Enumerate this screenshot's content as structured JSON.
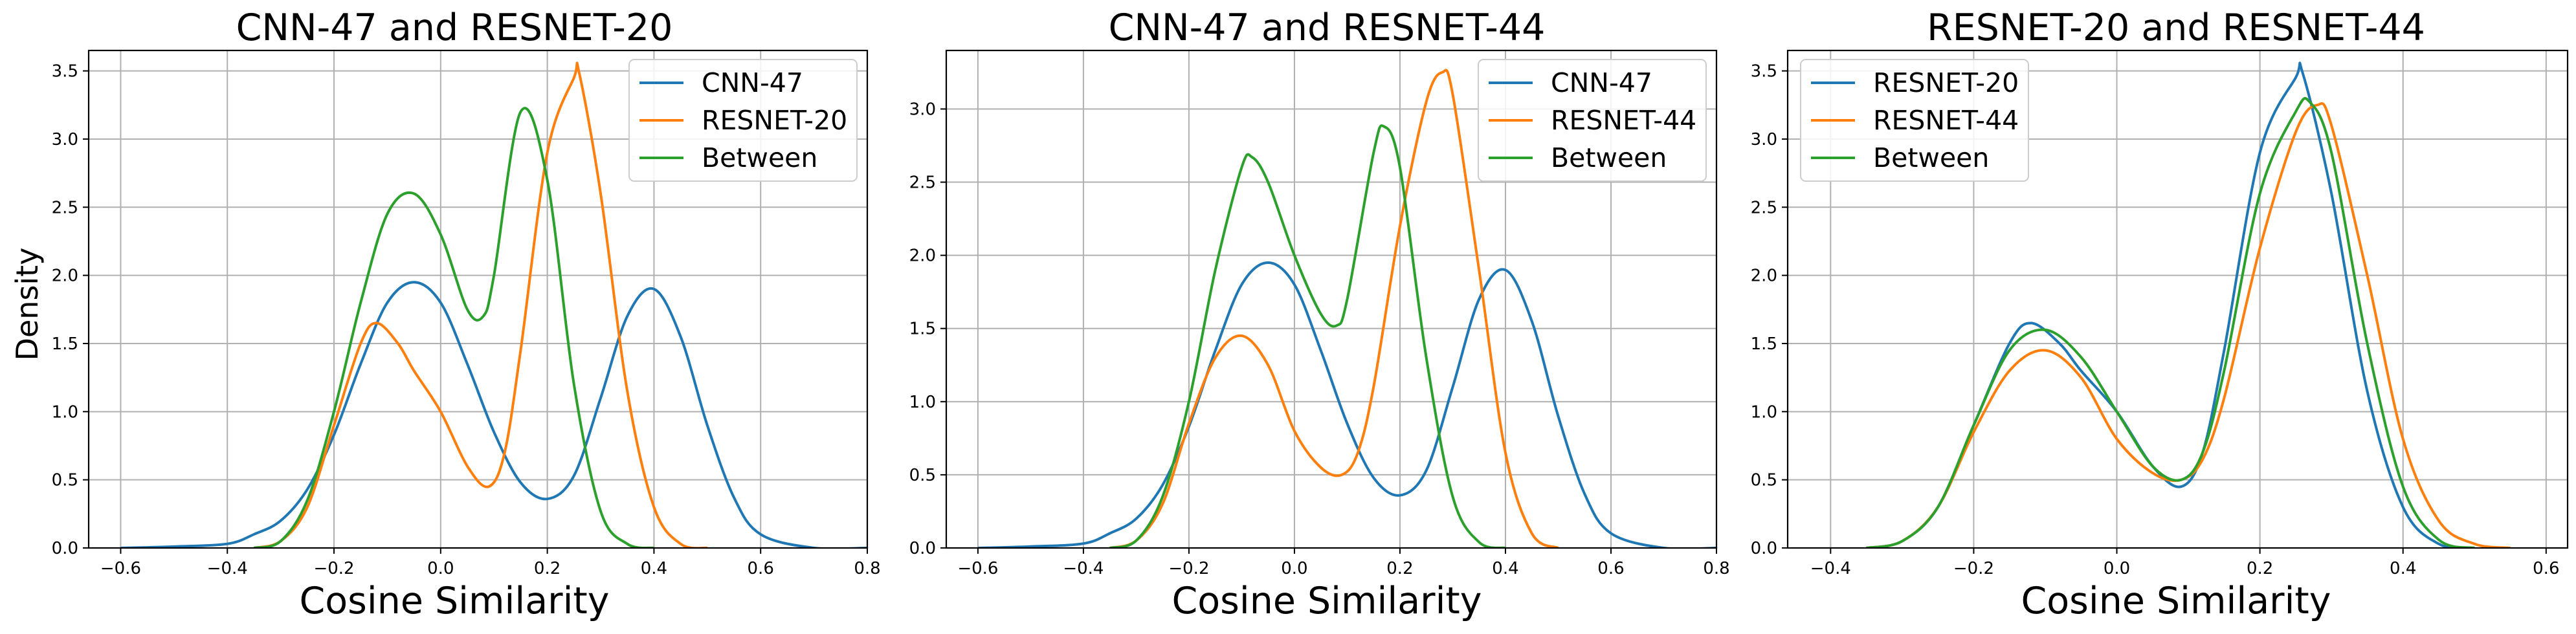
{
  "colors": {
    "blue": "#1f77b4",
    "orange": "#ff7f0e",
    "green": "#2ca02c",
    "grid": "#b0b0b0"
  },
  "chart_data": [
    {
      "type": "line",
      "title": "CNN-47 and RESNET-20",
      "xlabel": "Cosine Similarity",
      "ylabel": "Density",
      "xlim": [
        -0.66,
        0.8
      ],
      "ylim": [
        0,
        3.65
      ],
      "xticks": [
        -0.6,
        -0.4,
        -0.2,
        0.0,
        0.2,
        0.4,
        0.6,
        0.8
      ],
      "xtick_labels": [
        "−0.6",
        "−0.4",
        "−0.2",
        "0.0",
        "0.2",
        "0.4",
        "0.6",
        "0.8"
      ],
      "yticks": [
        0,
        0.5,
        1.0,
        1.5,
        2.0,
        2.5,
        3.0,
        3.5
      ],
      "ytick_labels": [
        "0.0",
        "0.5",
        "1.0",
        "1.5",
        "2.0",
        "2.5",
        "3.0",
        "3.5"
      ],
      "grid": true,
      "legend": "top-right",
      "series": [
        {
          "name": "CNN-47",
          "color": "#1f77b4",
          "x": [
            -0.6,
            -0.5,
            -0.4,
            -0.35,
            -0.3,
            -0.25,
            -0.2,
            -0.15,
            -0.1,
            -0.05,
            0.0,
            0.05,
            0.1,
            0.15,
            0.2,
            0.25,
            0.3,
            0.35,
            0.4,
            0.45,
            0.5,
            0.55,
            0.6,
            0.7,
            0.8
          ],
          "y": [
            0.0,
            0.01,
            0.03,
            0.1,
            0.2,
            0.43,
            0.83,
            1.35,
            1.8,
            1.95,
            1.8,
            1.35,
            0.85,
            0.48,
            0.36,
            0.53,
            1.1,
            1.7,
            1.9,
            1.55,
            0.9,
            0.37,
            0.1,
            0.0,
            0.0
          ]
        },
        {
          "name": "RESNET-20",
          "color": "#ff7f0e",
          "x": [
            -0.35,
            -0.3,
            -0.25,
            -0.2,
            -0.15,
            -0.12,
            -0.08,
            -0.05,
            0.0,
            0.05,
            0.09,
            0.12,
            0.15,
            0.2,
            0.25,
            0.26,
            0.3,
            0.35,
            0.4,
            0.45,
            0.5
          ],
          "y": [
            0.0,
            0.05,
            0.3,
            0.9,
            1.5,
            1.65,
            1.5,
            1.3,
            1.0,
            0.6,
            0.45,
            0.7,
            1.45,
            2.9,
            3.45,
            3.48,
            2.6,
            1.15,
            0.3,
            0.03,
            0.0
          ]
        },
        {
          "name": "Between",
          "color": "#2ca02c",
          "x": [
            -0.35,
            -0.3,
            -0.25,
            -0.2,
            -0.15,
            -0.1,
            -0.05,
            0.0,
            0.05,
            0.08,
            0.1,
            0.15,
            0.2,
            0.25,
            0.3,
            0.35,
            0.4
          ],
          "y": [
            0.0,
            0.05,
            0.35,
            1.0,
            1.8,
            2.45,
            2.6,
            2.3,
            1.75,
            1.7,
            2.0,
            3.2,
            2.7,
            1.2,
            0.27,
            0.03,
            0.0
          ]
        }
      ]
    },
    {
      "type": "line",
      "title": "CNN-47 and RESNET-44",
      "xlabel": "Cosine Similarity",
      "ylabel": "",
      "xlim": [
        -0.66,
        0.8
      ],
      "ylim": [
        0,
        3.4
      ],
      "xticks": [
        -0.6,
        -0.4,
        -0.2,
        0.0,
        0.2,
        0.4,
        0.6,
        0.8
      ],
      "xtick_labels": [
        "−0.6",
        "−0.4",
        "−0.2",
        "0.0",
        "0.2",
        "0.4",
        "0.6",
        "0.8"
      ],
      "yticks": [
        0,
        0.5,
        1.0,
        1.5,
        2.0,
        2.5,
        3.0
      ],
      "ytick_labels": [
        "0.0",
        "0.5",
        "1.0",
        "1.5",
        "2.0",
        "2.5",
        "3.0"
      ],
      "grid": true,
      "legend": "top-right",
      "series": [
        {
          "name": "CNN-47",
          "color": "#1f77b4",
          "x": [
            -0.6,
            -0.5,
            -0.4,
            -0.35,
            -0.3,
            -0.25,
            -0.2,
            -0.15,
            -0.1,
            -0.05,
            0.0,
            0.05,
            0.1,
            0.15,
            0.2,
            0.25,
            0.3,
            0.35,
            0.4,
            0.45,
            0.5,
            0.55,
            0.6,
            0.7,
            0.8
          ],
          "y": [
            0.0,
            0.01,
            0.03,
            0.1,
            0.2,
            0.43,
            0.83,
            1.35,
            1.8,
            1.95,
            1.8,
            1.35,
            0.85,
            0.48,
            0.36,
            0.53,
            1.1,
            1.7,
            1.9,
            1.55,
            0.9,
            0.37,
            0.1,
            0.0,
            0.0
          ]
        },
        {
          "name": "RESNET-44",
          "color": "#ff7f0e",
          "x": [
            -0.35,
            -0.3,
            -0.25,
            -0.2,
            -0.15,
            -0.1,
            -0.05,
            0.0,
            0.05,
            0.09,
            0.12,
            0.15,
            0.2,
            0.25,
            0.28,
            0.3,
            0.35,
            0.4,
            0.45,
            0.5
          ],
          "y": [
            0.0,
            0.05,
            0.3,
            0.85,
            1.3,
            1.45,
            1.25,
            0.8,
            0.55,
            0.5,
            0.65,
            1.1,
            2.2,
            3.05,
            3.25,
            3.1,
            1.9,
            0.65,
            0.1,
            0.0
          ]
        },
        {
          "name": "Between",
          "color": "#2ca02c",
          "x": [
            -0.35,
            -0.3,
            -0.25,
            -0.2,
            -0.15,
            -0.1,
            -0.08,
            -0.05,
            0.0,
            0.05,
            0.08,
            0.1,
            0.15,
            0.17,
            0.2,
            0.25,
            0.3,
            0.35,
            0.4
          ],
          "y": [
            0.0,
            0.05,
            0.35,
            1.0,
            1.9,
            2.6,
            2.67,
            2.5,
            2.0,
            1.6,
            1.52,
            1.7,
            2.7,
            2.88,
            2.6,
            1.3,
            0.35,
            0.04,
            0.0
          ]
        }
      ]
    },
    {
      "type": "line",
      "title": "RESNET-20 and RESNET-44",
      "xlabel": "Cosine Similarity",
      "ylabel": "",
      "xlim": [
        -0.46,
        0.63
      ],
      "ylim": [
        0,
        3.65
      ],
      "xticks": [
        -0.4,
        -0.2,
        0.0,
        0.2,
        0.4,
        0.6
      ],
      "xtick_labels": [
        "−0.4",
        "−0.2",
        "0.0",
        "0.2",
        "0.4",
        "0.6"
      ],
      "yticks": [
        0,
        0.5,
        1.0,
        1.5,
        2.0,
        2.5,
        3.0,
        3.5
      ],
      "ytick_labels": [
        "0.0",
        "0.5",
        "1.0",
        "1.5",
        "2.0",
        "2.5",
        "3.0",
        "3.5"
      ],
      "grid": true,
      "legend": "top-left",
      "series": [
        {
          "name": "RESNET-20",
          "color": "#1f77b4",
          "x": [
            -0.35,
            -0.3,
            -0.25,
            -0.2,
            -0.15,
            -0.12,
            -0.08,
            -0.05,
            0.0,
            0.05,
            0.09,
            0.12,
            0.15,
            0.2,
            0.25,
            0.26,
            0.3,
            0.35,
            0.4,
            0.45,
            0.5
          ],
          "y": [
            0.0,
            0.05,
            0.3,
            0.9,
            1.5,
            1.65,
            1.5,
            1.3,
            1.0,
            0.6,
            0.45,
            0.7,
            1.45,
            2.9,
            3.45,
            3.48,
            2.6,
            1.15,
            0.3,
            0.03,
            0.0
          ]
        },
        {
          "name": "RESNET-44",
          "color": "#ff7f0e",
          "x": [
            -0.35,
            -0.3,
            -0.25,
            -0.2,
            -0.15,
            -0.1,
            -0.05,
            0.0,
            0.05,
            0.09,
            0.12,
            0.15,
            0.2,
            0.25,
            0.28,
            0.3,
            0.35,
            0.4,
            0.45,
            0.5,
            0.55
          ],
          "y": [
            0.0,
            0.05,
            0.3,
            0.85,
            1.3,
            1.45,
            1.25,
            0.8,
            0.55,
            0.5,
            0.65,
            1.1,
            2.2,
            3.05,
            3.25,
            3.1,
            2.0,
            0.8,
            0.2,
            0.03,
            0.0
          ]
        },
        {
          "name": "Between",
          "color": "#2ca02c",
          "x": [
            -0.35,
            -0.3,
            -0.25,
            -0.2,
            -0.15,
            -0.1,
            -0.05,
            0.0,
            0.05,
            0.09,
            0.12,
            0.15,
            0.2,
            0.25,
            0.27,
            0.3,
            0.35,
            0.4,
            0.45,
            0.5
          ],
          "y": [
            0.0,
            0.05,
            0.3,
            0.9,
            1.45,
            1.6,
            1.4,
            1.0,
            0.6,
            0.5,
            0.7,
            1.3,
            2.6,
            3.2,
            3.27,
            2.9,
            1.5,
            0.45,
            0.06,
            0.0
          ]
        }
      ]
    }
  ]
}
